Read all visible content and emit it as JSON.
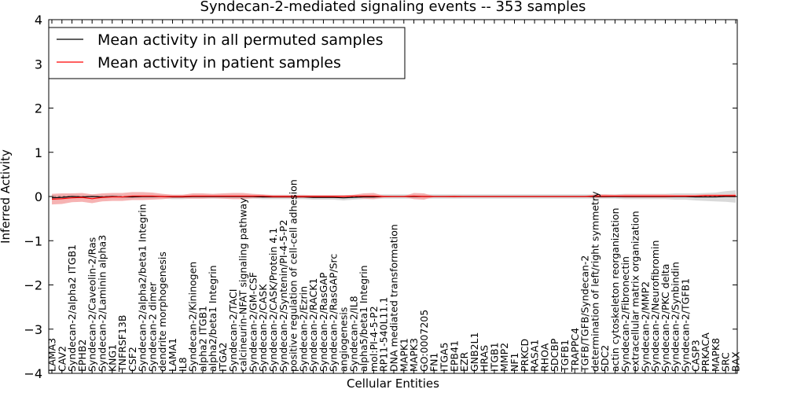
{
  "chart_data": {
    "type": "line",
    "title": "Syndecan-2-mediated signaling events -- 353 samples",
    "xlabel": "Cellular Entities",
    "ylabel": "Inferred Activity",
    "ylim": [
      -4,
      4
    ],
    "yticks": [
      "4",
      "3",
      "2",
      "1",
      "0",
      "−1",
      "−2",
      "−3",
      "−4"
    ],
    "ytick_values": [
      4,
      3,
      2,
      1,
      0,
      -1,
      -2,
      -3,
      -4
    ],
    "legend_position": "top-left",
    "categories": [
      "LAMA3",
      "CAV2",
      "Syndecan-2/alpha2 ITGB1",
      "EPHB2",
      "Syndecan-2/Caveolin-2/Ras",
      "Syndecan-2/Laminin alpha3",
      "KNG1",
      "TNFRSF13B",
      "CSF2",
      "Syndecan-2/alpha2/beta1 Integrin",
      "Syndecan-2 dimer",
      "dendrite morphogenesis",
      "LAMA1",
      "IL8",
      "Syndecan-2/Kininogen",
      "alpha2 ITGB1",
      "alpha2/beta1 Integrin",
      "ITGA2",
      "Syndecan-2/TACI",
      "calcineurin-NFAT signaling pathway",
      "Syndecan-2/GM-CSF",
      "Syndecan-2/CASK",
      "Syndecan-2/CASK/Protein 4.1",
      "Syndecan-2/Syntenin/PI-4-5-P2",
      "positive regulation of cell-cell adhesion",
      "Syndecan-2/Ezrin",
      "Syndecan-2/RACK1",
      "Syndecan-2/RasGAP",
      "Syndecan-2/RasGAP/Src",
      "angiogenesis",
      "Syndecan-2/IL8",
      "alpha5/beta1 Integrin",
      "mol:PI-4-5-P2",
      "RP11-540L11.1",
      "DNA mediated transformation",
      "MAPK1",
      "MAPK3",
      "GO:0007205",
      "FN1",
      "ITGA5",
      "EPB41",
      "EZR",
      "GNB2L1",
      "HRAS",
      "ITGB1",
      "MMP2",
      "NF1",
      "PRKCD",
      "RASA1",
      "RHOA",
      "SDCBP",
      "TGFB1",
      "TRAPPC4",
      "TGFB/TGFB/Syndecan-2",
      "determination of left/right symmetry",
      "SDC2",
      "actin cytoskeleton reorganization",
      "Syndecan-2/Fibronectin",
      "extracellular matrix organization",
      "Syndecan-2/MMP2",
      "Syndecan-2/Neurofibromin",
      "Syndecan-2/PKC delta",
      "Syndecan-2/Synbindin",
      "Syndecan-2/TGFB1",
      "CASP3",
      "PRKACA",
      "MAPK8",
      "SRC",
      "BAX"
    ],
    "series": [
      {
        "name": "Mean activity in all permuted samples",
        "color": "#000000",
        "band_color": "#cccccc",
        "values": [
          -0.03,
          -0.02,
          0.0,
          -0.01,
          0.0,
          -0.01,
          0.0,
          -0.01,
          -0.01,
          0.0,
          0.0,
          0.0,
          -0.01,
          -0.01,
          0.0,
          0.0,
          0.0,
          0.0,
          0.0,
          0.0,
          0.0,
          -0.01,
          -0.01,
          -0.01,
          -0.01,
          -0.01,
          -0.02,
          -0.02,
          -0.02,
          -0.03,
          -0.02,
          -0.01,
          -0.01,
          0.0,
          0.0,
          0.0,
          0.0,
          0.0,
          0.0,
          0.0,
          0.0,
          0.0,
          0.0,
          0.0,
          0.0,
          0.0,
          0.0,
          0.0,
          0.0,
          0.0,
          0.0,
          0.0,
          0.0,
          0.0,
          0.0,
          0.0,
          0.0,
          0.0,
          0.0,
          0.0,
          0.0,
          0.0,
          0.0,
          0.0,
          -0.01,
          -0.01,
          -0.01,
          0.0,
          0.0
        ],
        "spread": [
          0.06,
          0.06,
          0.06,
          0.05,
          0.05,
          0.05,
          0.05,
          0.05,
          0.05,
          0.05,
          0.05,
          0.05,
          0.05,
          0.05,
          0.05,
          0.05,
          0.05,
          0.05,
          0.05,
          0.05,
          0.05,
          0.05,
          0.05,
          0.05,
          0.05,
          0.05,
          0.05,
          0.05,
          0.05,
          0.06,
          0.05,
          0.05,
          0.05,
          0.05,
          0.05,
          0.05,
          0.05,
          0.05,
          0.05,
          0.05,
          0.05,
          0.05,
          0.05,
          0.05,
          0.05,
          0.05,
          0.05,
          0.05,
          0.05,
          0.05,
          0.05,
          0.05,
          0.05,
          0.05,
          0.05,
          0.05,
          0.05,
          0.06,
          0.06,
          0.06,
          0.06,
          0.06,
          0.07,
          0.07,
          0.08,
          0.09,
          0.1,
          0.12,
          0.14
        ]
      },
      {
        "name": "Mean activity in patient samples",
        "color": "#ff0000",
        "band_color": "#f4a0a0",
        "values": [
          -0.06,
          -0.05,
          -0.03,
          -0.02,
          -0.05,
          -0.02,
          -0.01,
          -0.01,
          0.01,
          0.01,
          0.01,
          0.0,
          0.0,
          0.0,
          0.01,
          0.01,
          0.01,
          0.01,
          0.01,
          0.01,
          0.01,
          0.01,
          0.0,
          0.0,
          0.0,
          0.0,
          0.0,
          0.0,
          0.0,
          0.0,
          0.01,
          0.01,
          0.01,
          0.0,
          0.0,
          0.0,
          0.01,
          0.0,
          0.0,
          0.0,
          0.0,
          0.0,
          0.0,
          0.0,
          0.0,
          0.0,
          0.0,
          0.0,
          0.0,
          0.0,
          0.0,
          0.0,
          0.0,
          0.0,
          0.01,
          0.01,
          0.01,
          0.01,
          0.01,
          0.01,
          0.01,
          0.01,
          0.01,
          0.01,
          0.01,
          0.02,
          0.02,
          0.02,
          0.02
        ],
        "spread": [
          0.12,
          0.12,
          0.1,
          0.1,
          0.1,
          0.09,
          0.09,
          0.09,
          0.09,
          0.09,
          0.08,
          0.06,
          0.04,
          0.04,
          0.06,
          0.06,
          0.05,
          0.06,
          0.07,
          0.07,
          0.05,
          0.04,
          0.03,
          0.03,
          0.03,
          0.03,
          0.03,
          0.03,
          0.03,
          0.03,
          0.03,
          0.06,
          0.07,
          0.02,
          0.01,
          0.01,
          0.07,
          0.07,
          0.01,
          0.01,
          0.02,
          0.01,
          0.01,
          0.01,
          0.01,
          0.01,
          0.01,
          0.01,
          0.01,
          0.01,
          0.01,
          0.01,
          0.01,
          0.01,
          0.04,
          0.04,
          0.03,
          0.04,
          0.04,
          0.04,
          0.04,
          0.04,
          0.03,
          0.03,
          0.03,
          0.03,
          0.03,
          0.03,
          0.04
        ]
      }
    ]
  }
}
